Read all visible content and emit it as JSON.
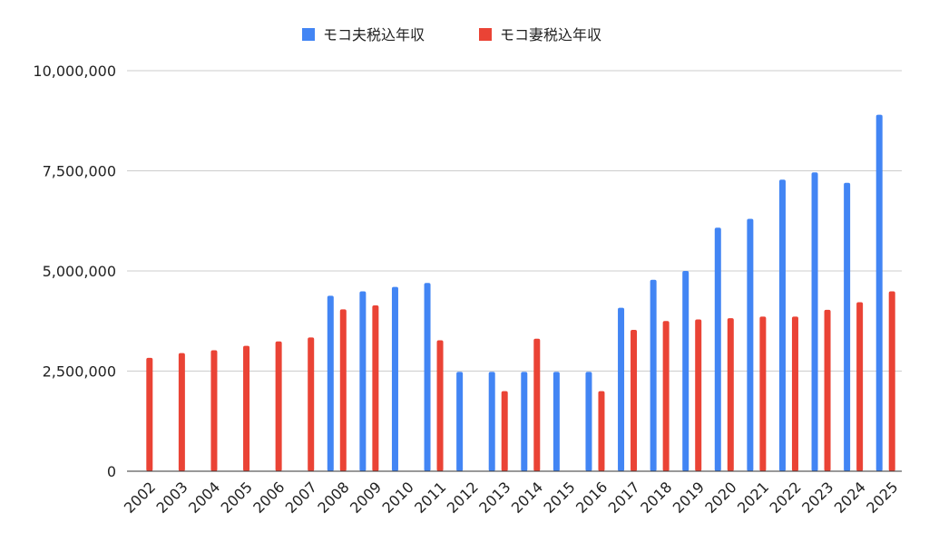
{
  "chart_data": {
    "type": "bar",
    "title": "",
    "xlabel": "",
    "ylabel": "",
    "ylim": [
      0,
      10000000
    ],
    "y_ticks": [
      {
        "value": 0,
        "label": "0"
      },
      {
        "value": 2500000,
        "label": "2,500,000"
      },
      {
        "value": 5000000,
        "label": "5,000,000"
      },
      {
        "value": 7500000,
        "label": "7,500,000"
      },
      {
        "value": 10000000,
        "label": "10,000,000"
      }
    ],
    "grid": true,
    "legend_position": "top-center",
    "categories": [
      "2002",
      "2003",
      "2004",
      "2005",
      "2006",
      "2007",
      "2008",
      "2009",
      "2010",
      "2011",
      "2012",
      "2013",
      "2014",
      "2015",
      "2016",
      "2017",
      "2018",
      "2019",
      "2020",
      "2021",
      "2022",
      "2023",
      "2024",
      "2025"
    ],
    "series": [
      {
        "name": "モコ夫税込年収",
        "color": "#4285f4",
        "values": [
          0,
          0,
          0,
          0,
          0,
          0,
          4380000,
          4490000,
          4600000,
          4700000,
          2480000,
          2480000,
          2480000,
          2480000,
          2480000,
          4080000,
          4780000,
          5000000,
          6080000,
          6300000,
          7280000,
          7460000,
          7200000,
          8900000
        ]
      },
      {
        "name": "モコ妻税込年収",
        "color": "#ea4335",
        "values": [
          2830000,
          2950000,
          3020000,
          3130000,
          3240000,
          3340000,
          4040000,
          4140000,
          0,
          3270000,
          0,
          2000000,
          3310000,
          0,
          2000000,
          3530000,
          3750000,
          3790000,
          3820000,
          3860000,
          3860000,
          4030000,
          4220000,
          4490000
        ]
      }
    ]
  }
}
